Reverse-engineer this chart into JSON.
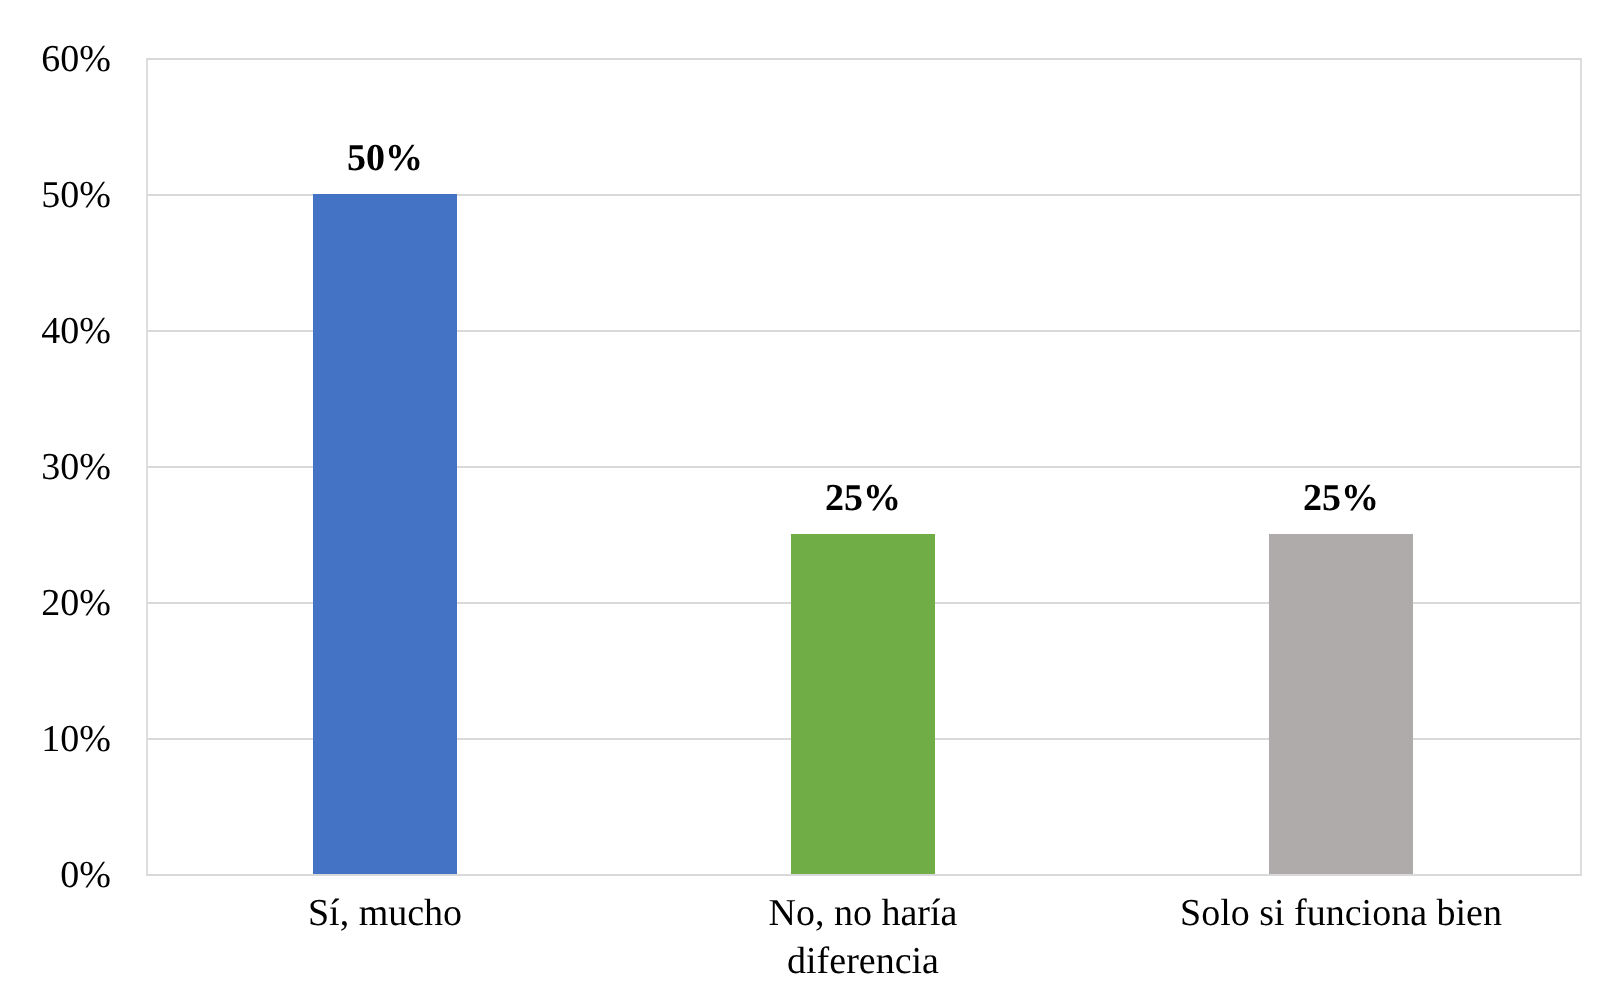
{
  "chart_data": {
    "type": "bar",
    "categories": [
      "Sí, mucho",
      "No, no haría diferencia",
      "Solo si funciona bien"
    ],
    "values": [
      50,
      25,
      25
    ],
    "colors": [
      "#4472c4",
      "#70ad47",
      "#afabab"
    ],
    "value_labels": [
      "50%",
      "25%",
      "25%"
    ],
    "ylim": [
      0,
      60
    ],
    "yticks": [
      {
        "value": 0,
        "label": "0%"
      },
      {
        "value": 10,
        "label": "10%"
      },
      {
        "value": 20,
        "label": "20%"
      },
      {
        "value": 30,
        "label": "30%"
      },
      {
        "value": 40,
        "label": "40%"
      },
      {
        "value": 50,
        "label": "50%"
      },
      {
        "value": 60,
        "label": "60%"
      }
    ],
    "grid": "y"
  }
}
